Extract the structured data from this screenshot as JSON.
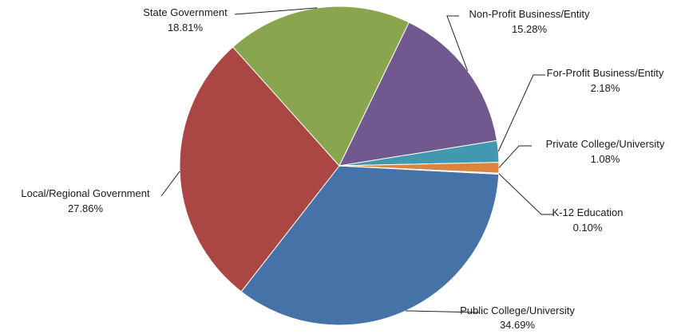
{
  "chart_data": {
    "type": "pie",
    "title": "",
    "slices": [
      {
        "label": "Public College/University",
        "percent_text": "34.69%",
        "value": 34.69,
        "color": "#4572A7"
      },
      {
        "label": "Local/Regional Government",
        "percent_text": "27.86%",
        "value": 27.86,
        "color": "#AA4643"
      },
      {
        "label": "State Government",
        "percent_text": "18.81%",
        "value": 18.81,
        "color": "#89A54E"
      },
      {
        "label": "Non-Profit Business/Entity",
        "percent_text": "15.28%",
        "value": 15.28,
        "color": "#71588F"
      },
      {
        "label": "For-Profit Business/Entity",
        "percent_text": "2.18%",
        "value": 2.18,
        "color": "#4198AF"
      },
      {
        "label": "Private College/University",
        "percent_text": "1.08%",
        "value": 1.08,
        "color": "#DB843D"
      },
      {
        "label": "K-12 Education",
        "percent_text": "0.10%",
        "value": 0.1,
        "color": "#93A9CF"
      }
    ]
  }
}
